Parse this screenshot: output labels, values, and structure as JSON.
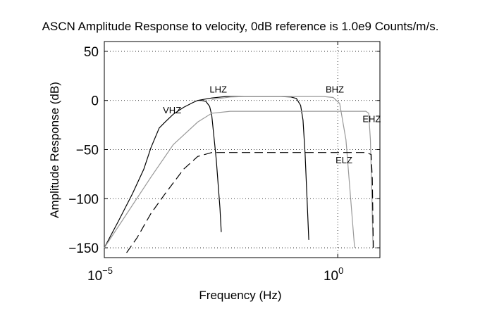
{
  "chart_data": {
    "type": "line",
    "title": "ASCN Amplitude Response to velocity, 0dB reference is 1.0e9 Counts/m/s.",
    "xlabel": "Frequency (Hz)",
    "ylabel": "Amplitude Response (dB)",
    "xscale": "log",
    "xlim": [
      1e-05,
      8
    ],
    "ylim": [
      -160,
      60
    ],
    "grid": true,
    "x_ticks": [
      {
        "value": 1e-05,
        "base": "10",
        "exp": "−5"
      },
      {
        "value": 1,
        "base": "10",
        "exp": "0"
      }
    ],
    "y_ticks": [
      {
        "value": 50,
        "label": "50"
      },
      {
        "value": 0,
        "label": "0"
      },
      {
        "value": -50,
        "label": "−50"
      },
      {
        "value": -100,
        "label": "−100"
      },
      {
        "value": -150,
        "label": "−150"
      }
    ],
    "series": [
      {
        "name": "VHZ",
        "color": "#000000",
        "dash": "",
        "label_at": [
          0.00018,
          -13
        ],
        "points": [
          [
            1e-05,
            -150
          ],
          [
            2e-05,
            -123
          ],
          [
            4e-05,
            -95
          ],
          [
            7e-05,
            -70
          ],
          [
            0.0001,
            -48
          ],
          [
            0.00015,
            -28
          ],
          [
            0.0002,
            -22
          ],
          [
            0.0003,
            -14
          ],
          [
            0.0005,
            -7
          ],
          [
            0.0008,
            -2
          ],
          [
            0.001,
            0
          ],
          [
            0.0012,
            0
          ],
          [
            0.0015,
            -1
          ],
          [
            0.0018,
            -6
          ],
          [
            0.002,
            -15
          ],
          [
            0.0025,
            -60
          ],
          [
            0.003,
            -110
          ],
          [
            0.0032,
            -134
          ]
        ]
      },
      {
        "name": "LHZ",
        "color": "#000000",
        "dash": "",
        "label_at": [
          0.0018,
          8
        ],
        "points": [
          [
            0.001,
            0
          ],
          [
            0.002,
            2.5
          ],
          [
            0.004,
            4
          ],
          [
            0.02,
            4
          ],
          [
            0.06,
            4
          ],
          [
            0.1,
            3.5
          ],
          [
            0.13,
            2
          ],
          [
            0.16,
            -5
          ],
          [
            0.18,
            -20
          ],
          [
            0.2,
            -55
          ],
          [
            0.22,
            -100
          ],
          [
            0.24,
            -142
          ]
        ]
      },
      {
        "name": "BHZ",
        "color": "#999999",
        "dash": "",
        "label_at": [
          0.55,
          8
        ],
        "points": [
          [
            0.002,
            1
          ],
          [
            0.005,
            3.5
          ],
          [
            0.01,
            4
          ],
          [
            0.1,
            4
          ],
          [
            0.5,
            4
          ],
          [
            0.8,
            3
          ],
          [
            1.1,
            -3
          ],
          [
            1.5,
            -40
          ],
          [
            2.3,
            -150
          ]
        ]
      },
      {
        "name": "EHZ",
        "color": "#999999",
        "dash": "",
        "label_at": [
          3.4,
          -22
        ],
        "points": [
          [
            1e-05,
            -150
          ],
          [
            0.0001,
            -78
          ],
          [
            0.0003,
            -45
          ],
          [
            0.001,
            -22
          ],
          [
            0.002,
            -13
          ],
          [
            0.005,
            -11
          ],
          [
            0.1,
            -11
          ],
          [
            1,
            -11
          ],
          [
            4,
            -11
          ],
          [
            4.6,
            -13
          ],
          [
            5,
            -40
          ],
          [
            5.4,
            -100
          ],
          [
            5.7,
            -150
          ]
        ]
      },
      {
        "name": "ELZ",
        "color": "#000000",
        "dash": "12 6",
        "label_at": [
          0.9,
          -64
        ],
        "points": [
          [
            3e-05,
            -155
          ],
          [
            5e-05,
            -140
          ],
          [
            0.0001,
            -115
          ],
          [
            0.0002,
            -95
          ],
          [
            0.0005,
            -70
          ],
          [
            0.001,
            -57
          ],
          [
            0.002,
            -53
          ],
          [
            0.01,
            -53
          ],
          [
            0.1,
            -53
          ],
          [
            1,
            -53
          ],
          [
            4,
            -53
          ],
          [
            5.2,
            -55
          ],
          [
            5.5,
            -80
          ],
          [
            5.8,
            -150
          ]
        ]
      }
    ]
  }
}
